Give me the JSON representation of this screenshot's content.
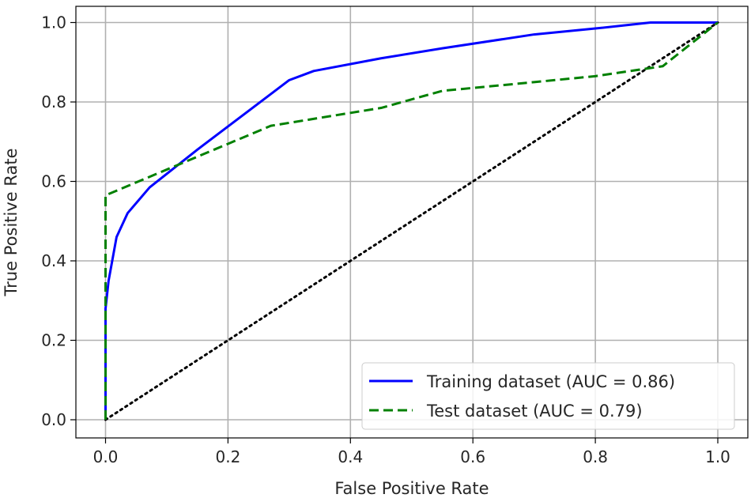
{
  "chart_data": {
    "type": "line",
    "xlabel": "False Positive Rate",
    "ylabel": "True Positive Rate",
    "xlim": [
      0.0,
      1.0
    ],
    "ylim": [
      0.0,
      1.0
    ],
    "xticks": [
      "0.0",
      "0.2",
      "0.4",
      "0.6",
      "0.8",
      "1.0"
    ],
    "yticks": [
      "0.0",
      "0.2",
      "0.4",
      "0.6",
      "0.8",
      "1.0"
    ],
    "grid": true,
    "legend_position": "lower-right",
    "series": [
      {
        "name": "Training dataset (AUC = 0.86)",
        "color": "#0000ff",
        "style": "solid",
        "x": [
          0.0,
          0.0,
          0.005,
          0.018,
          0.036,
          0.072,
          0.15,
          0.27,
          0.3,
          0.34,
          0.45,
          0.55,
          0.7,
          0.8,
          0.89,
          1.0
        ],
        "y": [
          0.0,
          0.28,
          0.35,
          0.46,
          0.52,
          0.585,
          0.68,
          0.82,
          0.855,
          0.878,
          0.91,
          0.935,
          0.97,
          0.985,
          1.0,
          1.0
        ]
      },
      {
        "name": "Test dataset (AUC = 0.79)",
        "color": "#008000",
        "style": "dashed",
        "x": [
          0.0,
          0.0,
          0.27,
          0.35,
          0.45,
          0.55,
          0.7,
          0.8,
          0.91,
          1.0
        ],
        "y": [
          0.0,
          0.565,
          0.74,
          0.76,
          0.785,
          0.828,
          0.85,
          0.865,
          0.89,
          1.0
        ]
      },
      {
        "color": "#000000",
        "style": "dotted",
        "x": [
          0.0,
          1.0
        ],
        "y": [
          0.0,
          1.0
        ]
      }
    ]
  }
}
